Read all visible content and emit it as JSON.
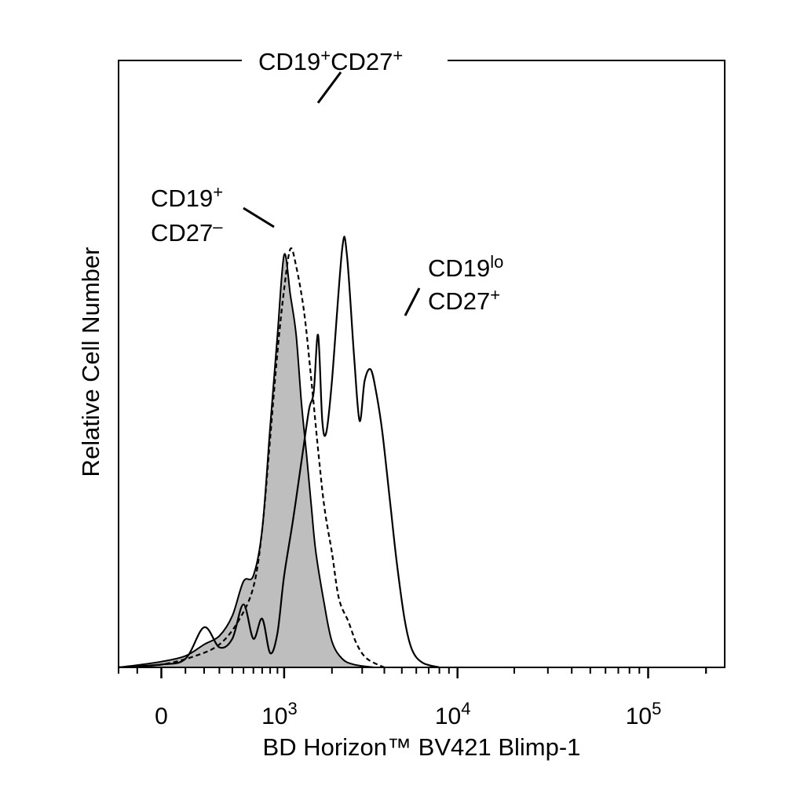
{
  "chart_data": {
    "type": "area",
    "title": "",
    "xlabel": "BD Horizon™ BV421 Blimp-1",
    "ylabel": "Relative Cell Number",
    "x_scale": "biexponential",
    "xlim": [
      -200,
      250000
    ],
    "ylim": [
      0,
      1
    ],
    "grid": false,
    "x_tick_labels": [
      {
        "value": 0,
        "base": "0",
        "exp": ""
      },
      {
        "value": 1000,
        "base": "10",
        "exp": "3"
      },
      {
        "value": 10000,
        "base": "10",
        "exp": "4"
      },
      {
        "value": 100000,
        "base": "10",
        "exp": "5"
      }
    ],
    "series": [
      {
        "name": "CD19+ CD27–",
        "style": "filled",
        "color": "#bebebe",
        "points": [
          [
            -200,
            0
          ],
          [
            -100,
            0.004
          ],
          [
            0,
            0.01
          ],
          [
            100,
            0.02
          ],
          [
            200,
            0.04
          ],
          [
            300,
            0.055
          ],
          [
            400,
            0.09
          ],
          [
            500,
            0.15
          ],
          [
            600,
            0.16
          ],
          [
            700,
            0.24
          ],
          [
            800,
            0.42
          ],
          [
            900,
            0.58
          ],
          [
            1000,
            0.72
          ],
          [
            1100,
            0.65
          ],
          [
            1200,
            0.58
          ],
          [
            1300,
            0.46
          ],
          [
            1400,
            0.37
          ],
          [
            1500,
            0.28
          ],
          [
            1600,
            0.2
          ],
          [
            1800,
            0.11
          ],
          [
            2000,
            0.045
          ],
          [
            2300,
            0.015
          ],
          [
            2700,
            0.005
          ],
          [
            3500,
            0
          ]
        ]
      },
      {
        "name": "CD19+CD27+",
        "style": "dashed",
        "color": "#000000",
        "points": [
          [
            -200,
            0
          ],
          [
            0,
            0.005
          ],
          [
            150,
            0.02
          ],
          [
            300,
            0.04
          ],
          [
            450,
            0.08
          ],
          [
            600,
            0.14
          ],
          [
            700,
            0.24
          ],
          [
            800,
            0.4
          ],
          [
            900,
            0.55
          ],
          [
            1000,
            0.66
          ],
          [
            1100,
            0.73
          ],
          [
            1200,
            0.7
          ],
          [
            1350,
            0.62
          ],
          [
            1500,
            0.5
          ],
          [
            1650,
            0.38
          ],
          [
            1800,
            0.28
          ],
          [
            2000,
            0.2
          ],
          [
            2200,
            0.12
          ],
          [
            2500,
            0.08
          ],
          [
            2800,
            0.04
          ],
          [
            3200,
            0.015
          ],
          [
            4000,
            0
          ]
        ]
      },
      {
        "name": "CD19lo CD27+",
        "style": "solid",
        "color": "#000000",
        "points": [
          [
            -200,
            0
          ],
          [
            0,
            0.005
          ],
          [
            100,
            0.015
          ],
          [
            200,
            0.07
          ],
          [
            300,
            0.035
          ],
          [
            400,
            0.05
          ],
          [
            500,
            0.11
          ],
          [
            600,
            0.05
          ],
          [
            700,
            0.085
          ],
          [
            800,
            0.025
          ],
          [
            900,
            0.06
          ],
          [
            1000,
            0.16
          ],
          [
            1150,
            0.26
          ],
          [
            1300,
            0.36
          ],
          [
            1450,
            0.45
          ],
          [
            1550,
            0.48
          ],
          [
            1650,
            0.58
          ],
          [
            1750,
            0.43
          ],
          [
            1850,
            0.41
          ],
          [
            2000,
            0.5
          ],
          [
            2300,
            0.73
          ],
          [
            2450,
            0.72
          ],
          [
            2700,
            0.54
          ],
          [
            2900,
            0.43
          ],
          [
            3100,
            0.5
          ],
          [
            3350,
            0.52
          ],
          [
            3600,
            0.48
          ],
          [
            3900,
            0.41
          ],
          [
            4300,
            0.29
          ],
          [
            4700,
            0.18
          ],
          [
            5200,
            0.08
          ],
          [
            5700,
            0.03
          ],
          [
            6500,
            0.008
          ],
          [
            8000,
            0
          ]
        ]
      }
    ],
    "annotations": [
      {
        "target": "CD19+CD27+",
        "lines": [
          {
            "base": "CD19",
            "sup": "+",
            "base2": "CD27",
            "sup2": "+"
          }
        ]
      },
      {
        "target": "CD19+ CD27–",
        "lines": [
          {
            "base": "CD19",
            "sup": "+"
          },
          {
            "base": "CD27",
            "sup": "–"
          }
        ]
      },
      {
        "target": "CD19lo CD27+",
        "lines": [
          {
            "base": "CD19",
            "sup": "lo"
          },
          {
            "base": "CD27",
            "sup": "+"
          }
        ]
      }
    ]
  }
}
